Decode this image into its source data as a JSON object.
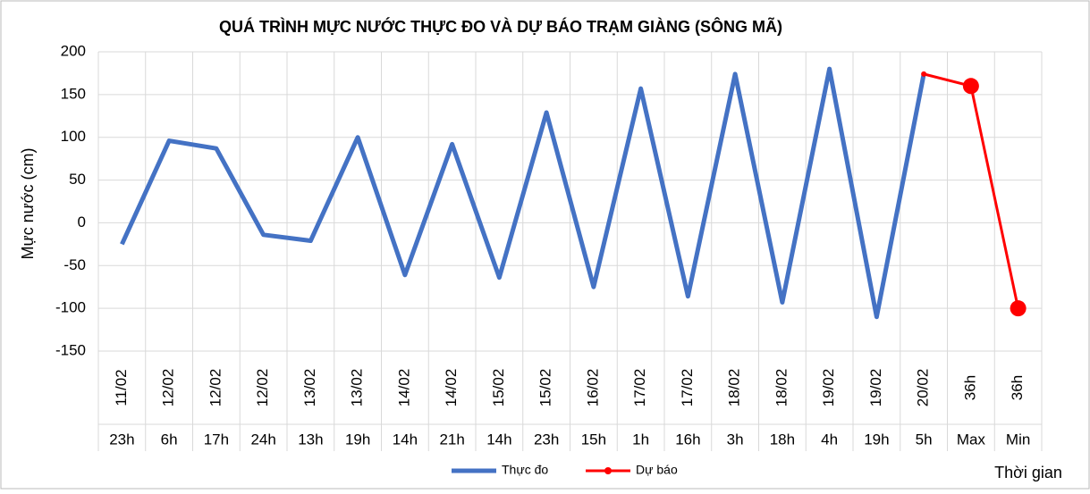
{
  "chart_data": {
    "type": "line",
    "title": "QUÁ TRÌNH MỰC NƯỚC THỰC ĐO VÀ DỰ BÁO TRẠM  GIÀNG (SÔNG MÃ)",
    "y_label": "Mực nước (cm)",
    "x_label": "Thời gian",
    "dates": [
      "11/02",
      "12/02",
      "12/02",
      "12/02",
      "13/02",
      "13/02",
      "14/02",
      "14/02",
      "15/02",
      "15/02",
      "16/02",
      "17/02",
      "17/02",
      "18/02",
      "18/02",
      "19/02",
      "19/02",
      "20/02",
      "36h",
      "36h"
    ],
    "categories": [
      "23h",
      "6h",
      "17h",
      "24h",
      "13h",
      "19h",
      "14h",
      "21h",
      "14h",
      "23h",
      "15h",
      "1h",
      "16h",
      "3h",
      "18h",
      "4h",
      "19h",
      "5h",
      "Max",
      "Min"
    ],
    "series": [
      {
        "name": "Thực đo",
        "color": "#4472c4",
        "values": [
          -25,
          96,
          87,
          -14,
          -21,
          100,
          -61,
          92,
          -64,
          129,
          -75,
          157,
          -86,
          174,
          -93,
          180,
          -110,
          174,
          null,
          null
        ]
      },
      {
        "name": "Dự báo",
        "color": "#ff0000",
        "values": [
          null,
          null,
          null,
          null,
          null,
          null,
          null,
          null,
          null,
          null,
          null,
          null,
          null,
          null,
          null,
          null,
          null,
          174,
          160,
          -100
        ]
      }
    ],
    "ylim": [
      -150,
      200
    ],
    "yticks": [
      -150,
      -100,
      -50,
      0,
      50,
      100,
      150,
      200
    ],
    "grid": true,
    "legend": "bottom"
  }
}
